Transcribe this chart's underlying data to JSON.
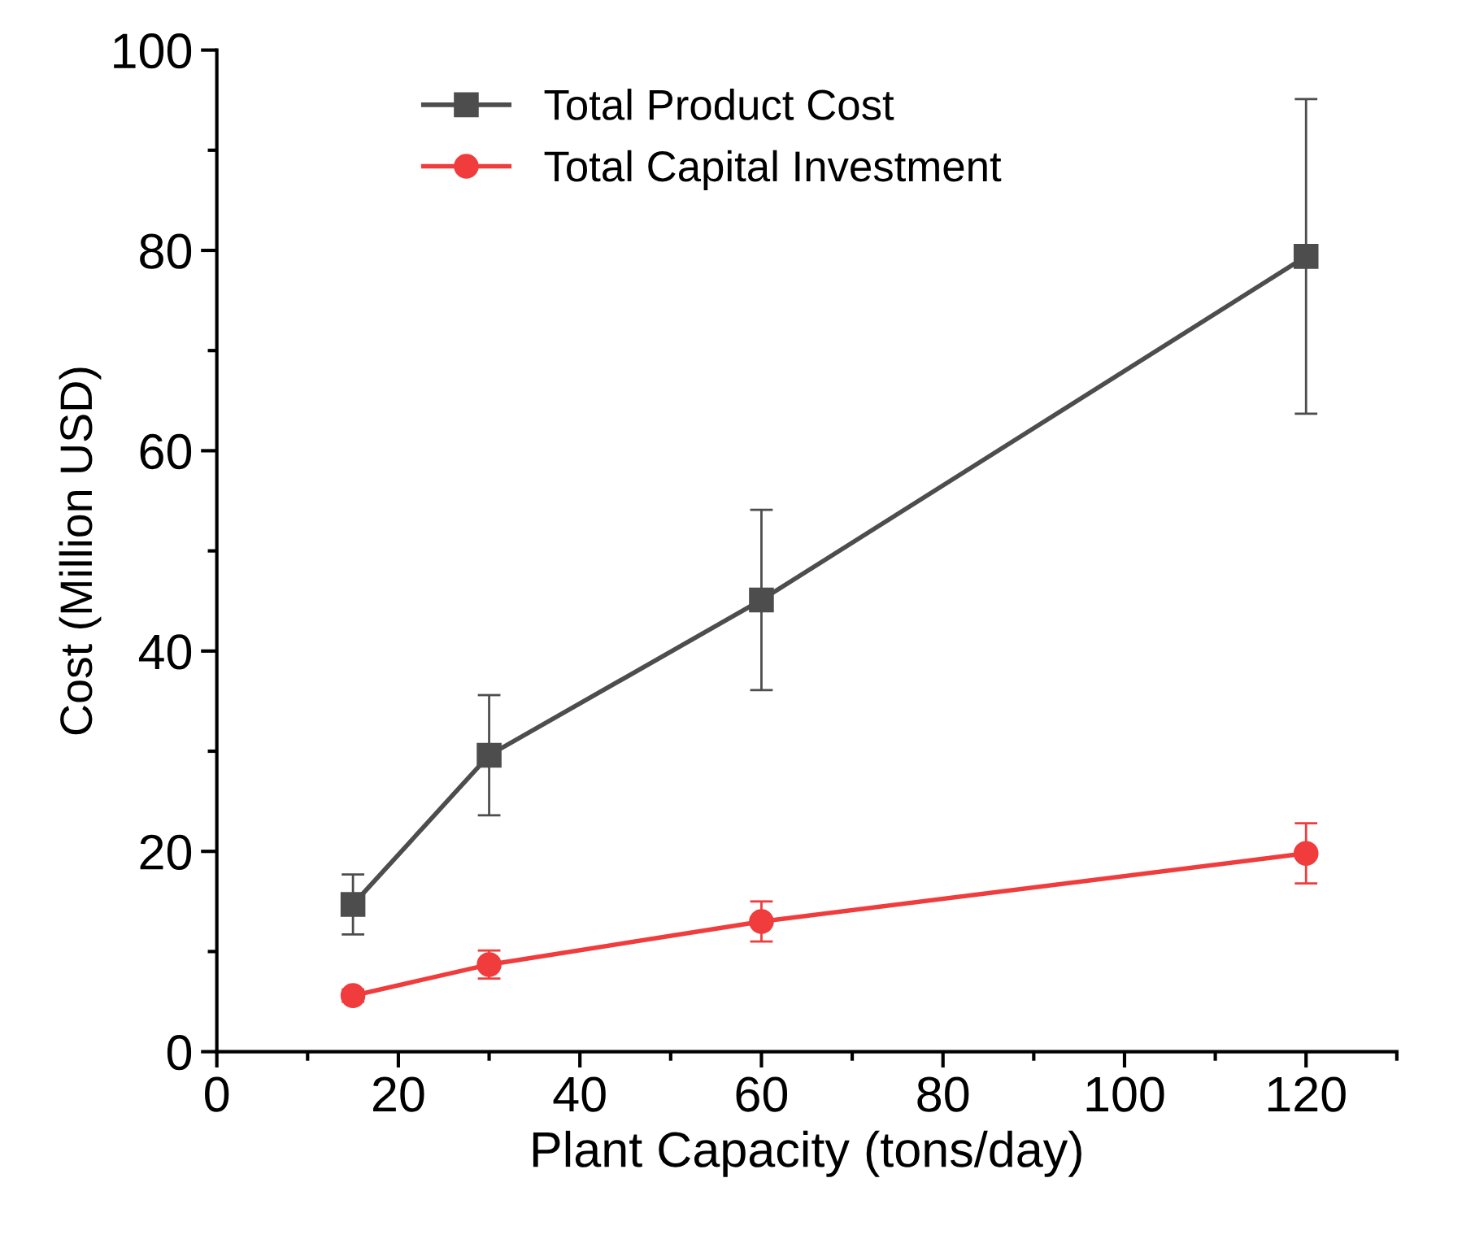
{
  "chart_data": {
    "type": "line",
    "xlabel": "Plant Capacity (tons/day)",
    "ylabel": "Cost (Million USD)",
    "x": [
      15,
      30,
      60,
      120
    ],
    "series": [
      {
        "name": "Total Product Cost",
        "color": "#4d4d4d",
        "marker": "square",
        "values": [
          14.7,
          29.6,
          45.1,
          79.4
        ],
        "errors": [
          3,
          6,
          9,
          15.7
        ]
      },
      {
        "name": "Total Capital Investment",
        "color": "#f03c3c",
        "marker": "circle",
        "values": [
          5.6,
          8.7,
          13,
          19.8
        ],
        "errors": [
          0.6,
          1.4,
          2,
          3
        ]
      }
    ],
    "xlim": [
      0,
      130
    ],
    "xticks": [
      0,
      20,
      40,
      60,
      80,
      100,
      120
    ],
    "ylim": [
      0,
      100
    ],
    "yticks": [
      0,
      20,
      40,
      60,
      80,
      100
    ],
    "grid": false,
    "legend": "top",
    "line_style": "solid"
  }
}
